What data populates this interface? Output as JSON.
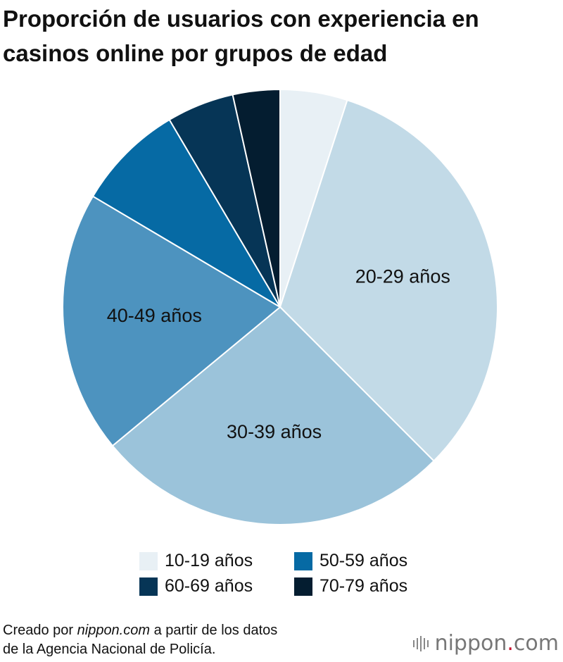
{
  "chart_data": {
    "type": "pie",
    "title": "Proporción de usuarios con experiencia en casinos online por grupos de edad",
    "slices": [
      {
        "label": "10-19 años",
        "value": 5.0,
        "color": "#e8f0f5",
        "show_label": false
      },
      {
        "label": "20-29 años",
        "value": 32.5,
        "color": "#c2dae7",
        "show_label": true
      },
      {
        "label": "30-39 años",
        "value": 26.5,
        "color": "#9bc3da",
        "show_label": true
      },
      {
        "label": "40-49 años",
        "value": 19.5,
        "color": "#4d93bf",
        "show_label": true
      },
      {
        "label": "50-59 años",
        "value": 8.0,
        "color": "#066aa4",
        "show_label": false
      },
      {
        "label": "60-69 años",
        "value": 5.0,
        "color": "#063556",
        "show_label": false
      },
      {
        "label": "70-79 años",
        "value": 3.5,
        "color": "#041d30",
        "show_label": false
      }
    ],
    "start_angle_deg": 0,
    "direction": "clockwise",
    "legend_position": "bottom"
  },
  "legend": [
    {
      "label": "10-19 años",
      "color": "#e8f0f5"
    },
    {
      "label": "50-59 años",
      "color": "#066aa4"
    },
    {
      "label": "60-69 años",
      "color": "#063556"
    },
    {
      "label": "70-79 años",
      "color": "#041d30"
    }
  ],
  "source": {
    "prefix": "Creado por ",
    "site": "nippon.com",
    "suffix": " a partir de los datos",
    "line2": "de la Agencia Nacional de Policía."
  },
  "logo": {
    "name": "nippon",
    "dot": ".",
    "tld": "com",
    "accent_color": "#c8102e"
  }
}
